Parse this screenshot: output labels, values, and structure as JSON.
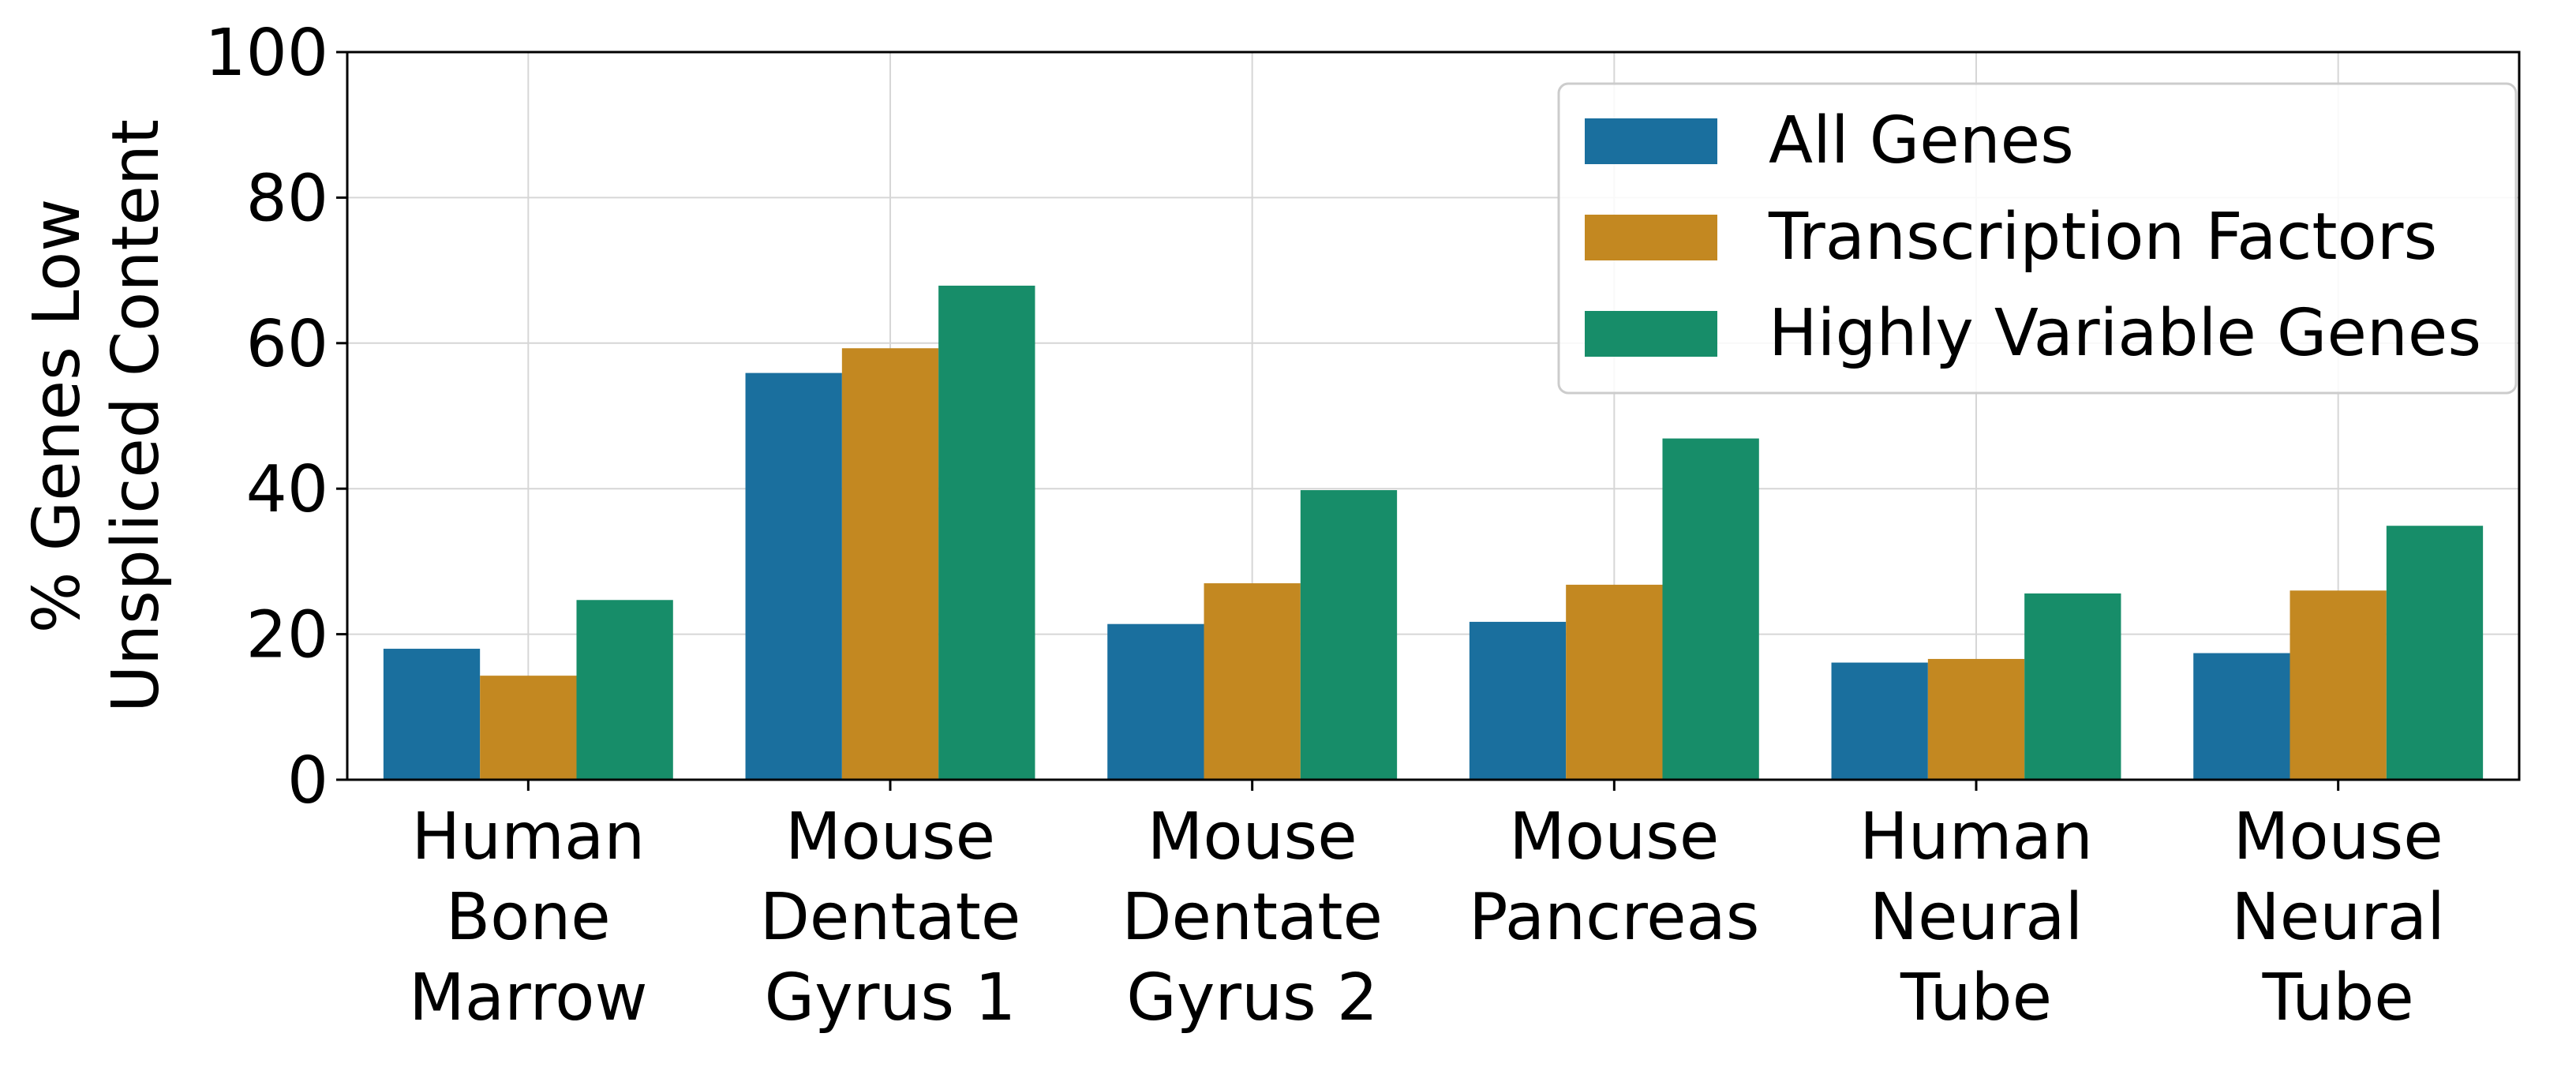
{
  "chart_data": {
    "type": "bar",
    "title": "",
    "xlabel": "",
    "ylabel": [
      "% Genes Low",
      "Unspliced Content"
    ],
    "ylim": [
      0,
      100
    ],
    "yticks": [
      "0",
      "20",
      "40",
      "60",
      "80",
      "100"
    ],
    "grid": true,
    "legend_position": "top-right",
    "categories": [
      [
        "Human",
        "Bone",
        "Marrow"
      ],
      [
        "Mouse",
        "Dentate",
        "Gyrus 1"
      ],
      [
        "Mouse",
        "Dentate",
        "Gyrus 2"
      ],
      [
        "Mouse",
        "Pancreas"
      ],
      [
        "Human",
        "Neural",
        "Tube"
      ],
      [
        "Mouse",
        "Neural",
        "Tube"
      ]
    ],
    "series": [
      {
        "name": "All Genes",
        "color": "#1a6f9e",
        "values": [
          18.0,
          55.9,
          21.4,
          21.7,
          16.1,
          17.4
        ]
      },
      {
        "name": "Transcription Factors",
        "color": "#c38821",
        "values": [
          14.3,
          59.3,
          27.0,
          26.8,
          16.6,
          26.0
        ]
      },
      {
        "name": "Highly Variable Genes",
        "color": "#178d69",
        "values": [
          24.7,
          67.9,
          39.8,
          46.9,
          25.6,
          34.9
        ]
      }
    ]
  }
}
